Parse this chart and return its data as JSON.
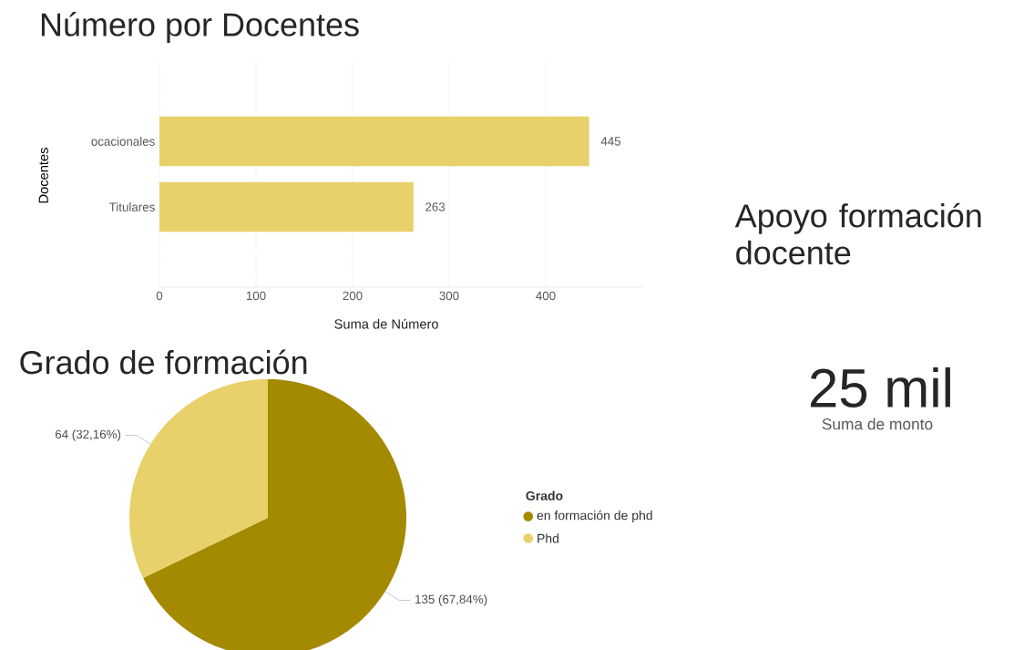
{
  "chart_data": [
    {
      "type": "bar",
      "orientation": "horizontal",
      "title": "Número por Docentes",
      "xlabel": "Suma de Número",
      "ylabel": "Docentes",
      "categories": [
        "ocacionales",
        "Titulares"
      ],
      "values": [
        445,
        263
      ],
      "color": "#e8d06a",
      "xlim": [
        0,
        500
      ],
      "xticks": [
        0,
        100,
        200,
        300,
        400
      ],
      "grid": "x",
      "data_labels": true
    },
    {
      "type": "pie",
      "title": "Grado de formación",
      "legend_title": "Grado",
      "legend": "right",
      "categories": [
        "en formación de phd",
        "Phd"
      ],
      "values": [
        135,
        64
      ],
      "colors": [
        "#a38a00",
        "#e8d06a"
      ],
      "value_labels": [
        "135 (67,84%)",
        "64 (32,16%)"
      ]
    },
    {
      "type": "other",
      "title": "Apoyo formación docente",
      "annotations": [
        "25 mil",
        "Suma de monto"
      ]
    }
  ]
}
